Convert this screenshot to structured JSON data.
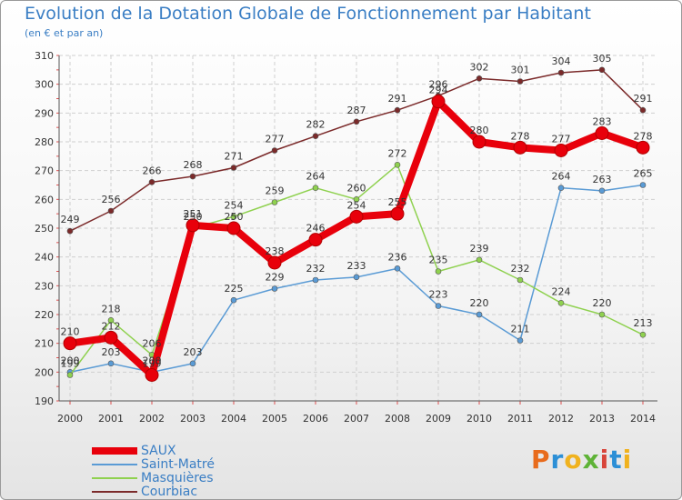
{
  "chart_data": {
    "type": "line",
    "title": "Evolution de la Dotation Globale de Fonctionnement par Habitant",
    "subtitle": "(en € et par an)",
    "xlabel": "",
    "ylabel": "",
    "categories": [
      "2000",
      "2001",
      "2002",
      "2003",
      "2004",
      "2005",
      "2006",
      "2007",
      "2008",
      "2009",
      "2010",
      "2011",
      "2012",
      "2013",
      "2014"
    ],
    "ylim": [
      190,
      310
    ],
    "yticks": [
      190,
      200,
      210,
      220,
      230,
      240,
      250,
      260,
      270,
      280,
      290,
      300,
      310
    ],
    "grid": true,
    "legend_position": "bottom-left",
    "series": [
      {
        "name": "SAUX",
        "color": "#e8000b",
        "values": [
          210,
          212,
          199,
          251,
          250,
          238,
          246,
          254,
          255,
          294,
          280,
          278,
          277,
          283,
          278
        ]
      },
      {
        "name": "Saint-Matré",
        "color": "#5a9bd5",
        "values": [
          200,
          203,
          200,
          203,
          225,
          229,
          232,
          233,
          236,
          223,
          220,
          211,
          264,
          263,
          265
        ]
      },
      {
        "name": "Masquières",
        "color": "#8fd14f",
        "values": [
          199,
          218,
          206,
          250,
          254,
          259,
          264,
          260,
          272,
          235,
          239,
          232,
          224,
          220,
          213
        ]
      },
      {
        "name": "Courbiac",
        "color": "#7b2a2a",
        "values": [
          249,
          256,
          266,
          268,
          271,
          277,
          282,
          287,
          291,
          296,
          302,
          301,
          304,
          305,
          291
        ]
      }
    ]
  },
  "logo": {
    "p": "P",
    "r": "r",
    "o": "o",
    "x": "x",
    "i1": "i",
    "t": "t",
    "i2": "i"
  }
}
